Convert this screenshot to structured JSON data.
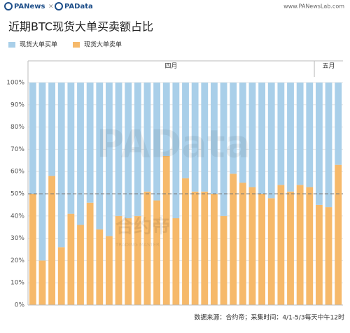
{
  "chart_data": {
    "type": "stacked_bar_100",
    "brand": "PANews",
    "brand_separator": "×",
    "brand2": "PAData",
    "website": "www.PANewsLab.com",
    "title": "近期BTC现货大单买卖额占比",
    "categories": [
      "四月",
      "四月",
      "四月",
      "四月",
      "四月",
      "四月",
      "四月",
      "四月",
      "四月",
      "四月",
      "四月",
      "四月",
      "四月",
      "四月",
      "四月",
      "四月",
      "四月",
      "四月",
      "四月",
      "四月",
      "四月",
      "四月",
      "四月",
      "四月",
      "四月",
      "四月",
      "四月",
      "四月",
      "四月",
      "四月",
      "五月",
      "五月",
      "五月"
    ],
    "series": [
      {
        "name": "现货大单买单",
        "color": "#a9cfe9",
        "values": [
          50,
          80,
          42,
          74,
          59,
          64,
          54,
          66,
          69,
          60,
          61,
          60,
          49,
          53,
          33,
          61,
          43,
          49,
          49,
          50,
          60,
          41,
          45,
          47,
          50,
          52,
          46,
          49,
          46,
          47,
          55,
          56,
          37
        ]
      },
      {
        "name": "现货大单卖单",
        "color": "#f6b96a",
        "values": [
          50,
          20,
          58,
          26,
          41,
          36,
          46,
          34,
          31,
          40,
          39,
          40,
          51,
          47,
          67,
          39,
          57,
          51,
          51,
          50,
          40,
          59,
          55,
          53,
          50,
          48,
          54,
          51,
          54,
          53,
          45,
          44,
          63
        ]
      }
    ],
    "ylim": [
      0,
      100
    ],
    "yticks": [
      {
        "value": 0,
        "label": "0%"
      },
      {
        "value": 10,
        "label": "10%"
      },
      {
        "value": 20,
        "label": "20%"
      },
      {
        "value": 30,
        "label": "30%"
      },
      {
        "value": 40,
        "label": "40%"
      },
      {
        "value": 50,
        "label": "50%"
      },
      {
        "value": 60,
        "label": "60%"
      },
      {
        "value": 70,
        "label": "70%"
      },
      {
        "value": 80,
        "label": "80%"
      },
      {
        "value": 90,
        "label": "90%"
      },
      {
        "value": 100,
        "label": "100%"
      }
    ],
    "grid": true,
    "reference_line": 50,
    "legend": "top-left",
    "watermark": "PAData",
    "watermark2": "合约帝",
    "watermark3": "TRADING MASTER",
    "source": "数据来源：合约帝；采集时间：4/1-5/3每天中午12时"
  }
}
